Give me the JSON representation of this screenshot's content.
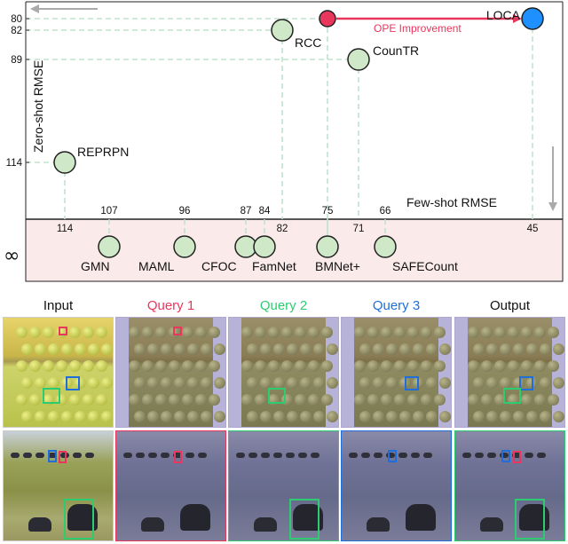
{
  "chart_data": {
    "type": "scatter",
    "title": "",
    "xlabel": "Few-shot RMSE",
    "ylabel": "Zero-shot RMSE",
    "x_reversed": true,
    "y_reversed": true,
    "y_ticks": [
      80,
      82,
      89,
      114
    ],
    "y_extra_tick": "∞",
    "top_row_points": [
      {
        "name": "REPRPN",
        "few_shot": 114,
        "zero_shot": 114
      },
      {
        "name": "RCC",
        "few_shot": 82,
        "zero_shot": 82
      },
      {
        "name": "CounTR",
        "few_shot": 71,
        "zero_shot": 89
      },
      {
        "name": "LOCA",
        "few_shot": 45,
        "zero_shot": 80
      }
    ],
    "ope_point": {
      "few_shot": 75,
      "zero_shot": 80,
      "label": "OPE Improvement"
    },
    "infinity_row_points": [
      {
        "name": "GMN",
        "few_shot": 107
      },
      {
        "name": "MAML",
        "few_shot": 96
      },
      {
        "name": "CFOC",
        "few_shot": 87
      },
      {
        "name": "FamNet",
        "few_shot": 84
      },
      {
        "name": "BMNet+",
        "few_shot": 75
      },
      {
        "name": "SAFECount",
        "few_shot": 66
      }
    ],
    "x_tick_labels": [
      "114",
      "107",
      "96",
      "87",
      "84",
      "82",
      "75",
      "71",
      "66",
      "45"
    ],
    "infinity_symbol": "∞",
    "colors": {
      "point": "#cfe8c8",
      "loca": "#1e90ff",
      "ope": "#e8365c",
      "grid": "#bfe3cc",
      "band": "#fbeaea"
    }
  },
  "panel_headers": [
    "Input",
    "Query 1",
    "Query 2",
    "Query 3",
    "Output"
  ],
  "header_colors": [
    "#111111",
    "#e8365c",
    "#2ecc71",
    "#1e6fd9",
    "#111111"
  ]
}
